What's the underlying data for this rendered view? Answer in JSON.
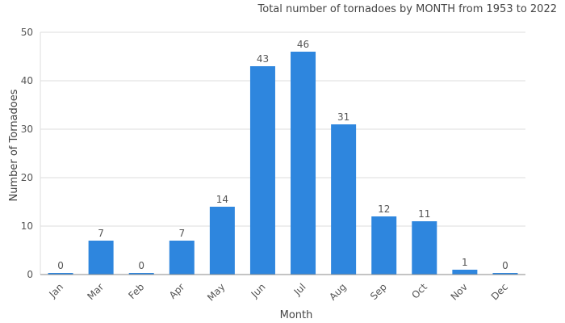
{
  "chart_data": {
    "type": "bar",
    "title": "Total number of tornadoes by MONTH from 1953 to 2022",
    "xlabel": "Month",
    "ylabel": "Number of Tornadoes",
    "categories": [
      "Jan",
      "Mar",
      "Feb",
      "Apr",
      "May",
      "Jun",
      "Jul",
      "Aug",
      "Sep",
      "Oct",
      "Nov",
      "Dec"
    ],
    "values": [
      0,
      7,
      0,
      7,
      14,
      43,
      46,
      31,
      12,
      11,
      1,
      0
    ],
    "ylim": [
      0,
      50
    ],
    "yticks": [
      0,
      10,
      20,
      30,
      40,
      50
    ],
    "grid": true,
    "legend": "none",
    "colors": {
      "bar": "#2e86de",
      "grid": "#dddddd",
      "axis": "#888888"
    }
  }
}
